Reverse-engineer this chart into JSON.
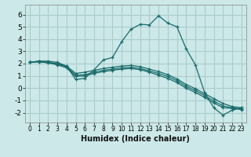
{
  "xlabel": "Humidex (Indice chaleur)",
  "background_color": "#cce8e8",
  "grid_color": "#aacccc",
  "line_color": "#1a6b6b",
  "xlim": [
    -0.5,
    23.5
  ],
  "ylim": [
    -2.8,
    6.8
  ],
  "yticks": [
    -2,
    -1,
    0,
    1,
    2,
    3,
    4,
    5,
    6
  ],
  "xticks": [
    0,
    1,
    2,
    3,
    4,
    5,
    6,
    7,
    8,
    9,
    10,
    11,
    12,
    13,
    14,
    15,
    16,
    17,
    18,
    19,
    20,
    21,
    22,
    23
  ],
  "curves": [
    [
      2.1,
      2.2,
      2.2,
      2.1,
      1.8,
      0.7,
      0.8,
      1.5,
      2.3,
      2.5,
      3.8,
      4.8,
      5.2,
      5.15,
      5.9,
      5.3,
      5.0,
      3.2,
      1.9,
      -0.35,
      -1.6,
      -2.2,
      -1.8,
      -1.6
    ],
    [
      2.1,
      2.2,
      2.1,
      2.0,
      1.8,
      1.2,
      1.3,
      1.45,
      1.6,
      1.7,
      1.8,
      1.85,
      1.75,
      1.55,
      1.35,
      1.1,
      0.75,
      0.3,
      -0.05,
      -0.45,
      -0.85,
      -1.25,
      -1.5,
      -1.6
    ],
    [
      2.1,
      2.15,
      2.1,
      1.95,
      1.75,
      1.05,
      1.1,
      1.3,
      1.45,
      1.55,
      1.65,
      1.7,
      1.6,
      1.4,
      1.2,
      0.95,
      0.6,
      0.15,
      -0.2,
      -0.6,
      -1.05,
      -1.45,
      -1.6,
      -1.7
    ],
    [
      2.1,
      2.15,
      2.05,
      1.9,
      1.65,
      0.95,
      1.0,
      1.2,
      1.35,
      1.45,
      1.55,
      1.6,
      1.5,
      1.3,
      1.05,
      0.8,
      0.45,
      0.0,
      -0.35,
      -0.75,
      -1.2,
      -1.6,
      -1.65,
      -1.75
    ]
  ]
}
